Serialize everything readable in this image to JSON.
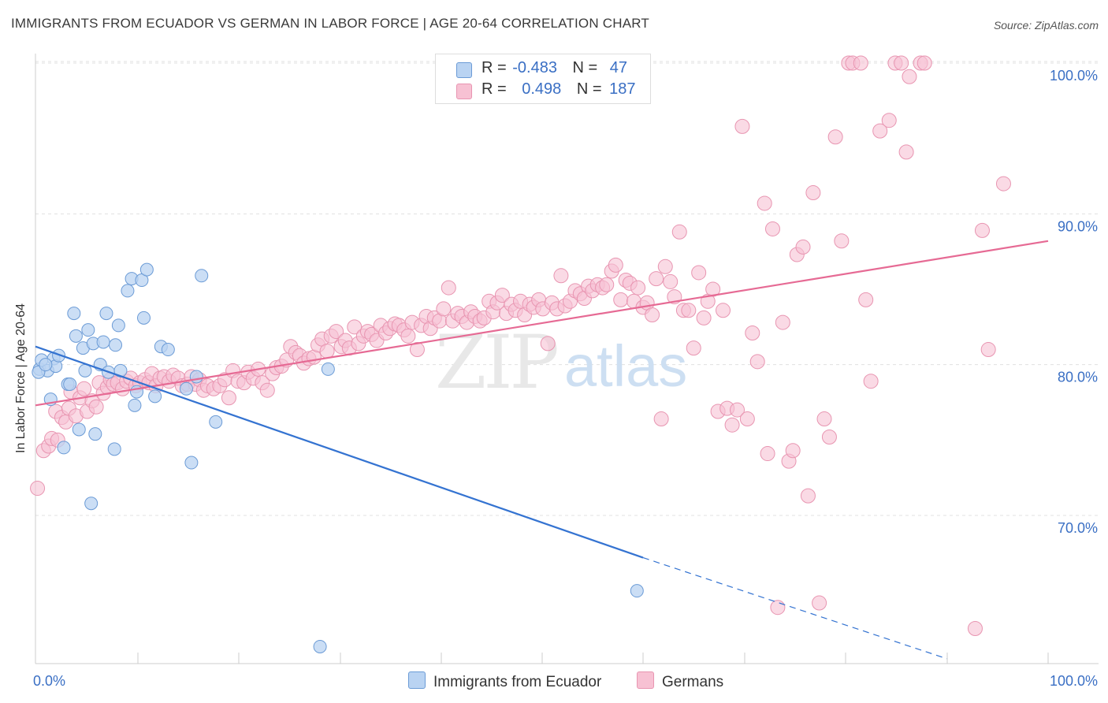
{
  "title": "IMMIGRANTS FROM ECUADOR VS GERMAN IN LABOR FORCE | AGE 20-64 CORRELATION CHART",
  "source": "Source: ZipAtlas.com",
  "watermark": {
    "zip": "ZIP",
    "atlas": "atlas"
  },
  "legend": {
    "series1": {
      "r_label": "R =",
      "r_value": "-0.483",
      "n_label": "N =",
      "n_value": "47"
    },
    "series2": {
      "r_label": "R =",
      "r_value": "0.498",
      "n_label": "N =",
      "n_value": "187"
    }
  },
  "colors": {
    "series1_fill": "#b9d3f2",
    "series1_stroke": "#6b9bd6",
    "series1_line": "#3473d1",
    "series2_fill": "#f7c1d3",
    "series2_stroke": "#e895b1",
    "series2_line": "#e66a94",
    "axis_text": "#3a6fc4",
    "grid": "#e0e0e0"
  },
  "chart_data": {
    "type": "scatter",
    "title": "IMMIGRANTS FROM ECUADOR VS GERMAN IN LABOR FORCE | AGE 20-64 CORRELATION CHART",
    "xlabel": "",
    "ylabel": "In Labor Force | Age 20-64",
    "xlim": [
      0,
      100
    ],
    "ylim": [
      60.5,
      101.5
    ],
    "x_tick_labels": [
      "0.0%",
      "100.0%"
    ],
    "y_ticks": [
      70,
      80,
      90,
      100
    ],
    "y_tick_labels": [
      "70.0%",
      "80.0%",
      "90.0%",
      "100.0%"
    ],
    "grid": true,
    "series": [
      {
        "name": "Immigrants from Ecuador",
        "r": -0.483,
        "n": 47,
        "trend": {
          "x0": 0,
          "y0": 81.2,
          "x1": 60,
          "y1": 67.2,
          "dash_to_x": 90,
          "dash_to_y": 60.5
        },
        "points": [
          [
            0.4,
            79.7
          ],
          [
            0.6,
            80.3
          ],
          [
            1.2,
            79.6
          ],
          [
            1.5,
            77.7
          ],
          [
            1.8,
            80.4
          ],
          [
            2.0,
            79.9
          ],
          [
            2.3,
            80.6
          ],
          [
            2.8,
            74.5
          ],
          [
            3.2,
            78.7
          ],
          [
            3.4,
            78.7
          ],
          [
            3.8,
            83.4
          ],
          [
            4.0,
            81.9
          ],
          [
            4.3,
            75.7
          ],
          [
            4.7,
            81.1
          ],
          [
            4.9,
            79.6
          ],
          [
            5.2,
            82.3
          ],
          [
            5.5,
            70.8
          ],
          [
            5.7,
            81.4
          ],
          [
            5.9,
            75.4
          ],
          [
            6.4,
            80.0
          ],
          [
            6.7,
            81.5
          ],
          [
            7.0,
            83.4
          ],
          [
            7.2,
            79.5
          ],
          [
            7.8,
            74.4
          ],
          [
            7.9,
            81.3
          ],
          [
            8.2,
            82.6
          ],
          [
            8.4,
            79.6
          ],
          [
            9.1,
            84.9
          ],
          [
            9.5,
            85.7
          ],
          [
            9.8,
            77.3
          ],
          [
            10.0,
            78.2
          ],
          [
            10.5,
            85.6
          ],
          [
            10.7,
            83.1
          ],
          [
            11.0,
            86.3
          ],
          [
            11.8,
            77.9
          ],
          [
            12.4,
            81.2
          ],
          [
            13.1,
            81.0
          ],
          [
            14.9,
            78.4
          ],
          [
            15.4,
            73.5
          ],
          [
            15.9,
            79.2
          ],
          [
            16.4,
            85.9
          ],
          [
            17.8,
            76.2
          ],
          [
            28.1,
            61.3
          ],
          [
            28.9,
            79.7
          ],
          [
            59.4,
            65.0
          ],
          [
            0.3,
            79.5
          ],
          [
            1.0,
            80.0
          ]
        ]
      },
      {
        "name": "Germans",
        "r": 0.498,
        "n": 187,
        "trend": {
          "x0": 0,
          "y0": 77.3,
          "x1": 100,
          "y1": 88.2
        },
        "points": [
          [
            0.2,
            71.8
          ],
          [
            0.8,
            74.3
          ],
          [
            1.3,
            74.6
          ],
          [
            1.6,
            75.1
          ],
          [
            2.0,
            76.9
          ],
          [
            2.2,
            75.0
          ],
          [
            2.6,
            76.5
          ],
          [
            3.0,
            76.2
          ],
          [
            3.3,
            77.1
          ],
          [
            3.5,
            78.2
          ],
          [
            4.0,
            76.6
          ],
          [
            4.4,
            77.8
          ],
          [
            4.8,
            78.4
          ],
          [
            5.1,
            76.9
          ],
          [
            5.6,
            77.6
          ],
          [
            6.0,
            77.2
          ],
          [
            6.3,
            78.8
          ],
          [
            6.7,
            78.1
          ],
          [
            7.1,
            78.5
          ],
          [
            7.4,
            79.0
          ],
          [
            7.7,
            78.7
          ],
          [
            8.1,
            78.8
          ],
          [
            8.6,
            78.4
          ],
          [
            9.0,
            78.9
          ],
          [
            9.4,
            79.1
          ],
          [
            9.9,
            78.6
          ],
          [
            10.3,
            78.8
          ],
          [
            10.8,
            79.0
          ],
          [
            11.2,
            78.8
          ],
          [
            11.5,
            79.4
          ],
          [
            11.9,
            78.6
          ],
          [
            12.3,
            79.1
          ],
          [
            12.7,
            79.2
          ],
          [
            13.2,
            78.9
          ],
          [
            13.6,
            79.3
          ],
          [
            14.1,
            79.1
          ],
          [
            14.5,
            78.6
          ],
          [
            15.0,
            78.7
          ],
          [
            15.4,
            79.2
          ],
          [
            15.8,
            78.7
          ],
          [
            16.2,
            79.0
          ],
          [
            16.6,
            78.3
          ],
          [
            17.0,
            78.6
          ],
          [
            17.6,
            78.4
          ],
          [
            18.2,
            78.6
          ],
          [
            18.7,
            79.0
          ],
          [
            19.1,
            77.8
          ],
          [
            19.5,
            79.6
          ],
          [
            20.0,
            78.9
          ],
          [
            20.6,
            78.8
          ],
          [
            21.0,
            79.5
          ],
          [
            21.5,
            79.1
          ],
          [
            22.0,
            79.7
          ],
          [
            22.4,
            78.8
          ],
          [
            22.9,
            78.3
          ],
          [
            23.4,
            79.4
          ],
          [
            23.8,
            79.8
          ],
          [
            24.3,
            79.9
          ],
          [
            24.8,
            80.3
          ],
          [
            25.2,
            81.2
          ],
          [
            25.7,
            80.8
          ],
          [
            26.1,
            80.6
          ],
          [
            26.5,
            80.1
          ],
          [
            27.0,
            80.4
          ],
          [
            27.5,
            80.5
          ],
          [
            27.9,
            81.3
          ],
          [
            28.3,
            81.7
          ],
          [
            28.8,
            80.9
          ],
          [
            29.2,
            81.9
          ],
          [
            29.7,
            82.2
          ],
          [
            30.2,
            81.2
          ],
          [
            30.6,
            81.6
          ],
          [
            31.0,
            81.1
          ],
          [
            31.5,
            82.5
          ],
          [
            31.9,
            81.4
          ],
          [
            32.4,
            81.9
          ],
          [
            32.8,
            82.2
          ],
          [
            33.2,
            82.0
          ],
          [
            33.7,
            81.6
          ],
          [
            34.1,
            82.6
          ],
          [
            34.6,
            82.1
          ],
          [
            35.0,
            82.4
          ],
          [
            35.5,
            82.7
          ],
          [
            35.9,
            82.6
          ],
          [
            36.4,
            82.3
          ],
          [
            36.8,
            81.9
          ],
          [
            37.2,
            82.8
          ],
          [
            37.7,
            81.0
          ],
          [
            38.1,
            82.6
          ],
          [
            38.6,
            83.2
          ],
          [
            39.0,
            82.4
          ],
          [
            39.4,
            83.1
          ],
          [
            39.9,
            82.9
          ],
          [
            40.3,
            83.7
          ],
          [
            40.8,
            85.1
          ],
          [
            41.2,
            82.9
          ],
          [
            41.7,
            83.4
          ],
          [
            42.1,
            83.2
          ],
          [
            42.6,
            82.8
          ],
          [
            43.0,
            83.5
          ],
          [
            43.4,
            83.2
          ],
          [
            43.9,
            82.9
          ],
          [
            44.3,
            83.1
          ],
          [
            44.8,
            84.2
          ],
          [
            45.2,
            83.5
          ],
          [
            45.6,
            84.1
          ],
          [
            46.1,
            84.6
          ],
          [
            46.5,
            83.4
          ],
          [
            47.0,
            84.0
          ],
          [
            47.4,
            83.6
          ],
          [
            47.9,
            84.2
          ],
          [
            48.3,
            83.3
          ],
          [
            48.8,
            84.0
          ],
          [
            49.2,
            83.8
          ],
          [
            49.7,
            84.3
          ],
          [
            50.1,
            83.7
          ],
          [
            50.6,
            81.4
          ],
          [
            51.0,
            84.1
          ],
          [
            51.5,
            83.7
          ],
          [
            51.9,
            85.9
          ],
          [
            52.3,
            83.9
          ],
          [
            52.8,
            84.2
          ],
          [
            53.3,
            84.9
          ],
          [
            53.8,
            84.7
          ],
          [
            54.2,
            84.4
          ],
          [
            54.6,
            85.2
          ],
          [
            55.0,
            84.9
          ],
          [
            55.5,
            85.3
          ],
          [
            56.0,
            85.1
          ],
          [
            56.4,
            85.3
          ],
          [
            56.9,
            86.2
          ],
          [
            57.3,
            86.6
          ],
          [
            57.8,
            84.3
          ],
          [
            58.3,
            85.6
          ],
          [
            58.7,
            85.4
          ],
          [
            59.1,
            84.2
          ],
          [
            59.5,
            85.1
          ],
          [
            60.0,
            83.8
          ],
          [
            60.4,
            84.1
          ],
          [
            60.9,
            83.3
          ],
          [
            61.3,
            85.7
          ],
          [
            61.8,
            76.4
          ],
          [
            62.2,
            86.5
          ],
          [
            62.7,
            85.5
          ],
          [
            63.1,
            84.5
          ],
          [
            63.6,
            88.8
          ],
          [
            64.0,
            83.6
          ],
          [
            64.5,
            83.6
          ],
          [
            65.0,
            81.1
          ],
          [
            65.5,
            86.1
          ],
          [
            66.0,
            83.1
          ],
          [
            66.4,
            84.2
          ],
          [
            66.9,
            85.0
          ],
          [
            67.4,
            76.9
          ],
          [
            67.9,
            83.6
          ],
          [
            68.3,
            77.1
          ],
          [
            68.8,
            76.0
          ],
          [
            69.3,
            77.0
          ],
          [
            69.8,
            95.8
          ],
          [
            70.3,
            76.4
          ],
          [
            70.8,
            82.1
          ],
          [
            71.3,
            80.2
          ],
          [
            72.0,
            90.7
          ],
          [
            72.3,
            74.1
          ],
          [
            72.8,
            89.0
          ],
          [
            73.3,
            63.9
          ],
          [
            73.8,
            82.8
          ],
          [
            74.4,
            73.6
          ],
          [
            74.8,
            74.3
          ],
          [
            75.2,
            87.3
          ],
          [
            75.8,
            87.8
          ],
          [
            76.3,
            71.3
          ],
          [
            76.8,
            91.4
          ],
          [
            77.4,
            64.2
          ],
          [
            77.9,
            76.4
          ],
          [
            78.4,
            75.2
          ],
          [
            79.0,
            95.1
          ],
          [
            79.6,
            88.2
          ],
          [
            80.3,
            100.0
          ],
          [
            80.7,
            100.0
          ],
          [
            81.5,
            100.0
          ],
          [
            82.0,
            84.3
          ],
          [
            82.5,
            78.9
          ],
          [
            83.4,
            95.5
          ],
          [
            84.3,
            96.2
          ],
          [
            84.9,
            100.0
          ],
          [
            85.5,
            100.0
          ],
          [
            86.0,
            94.1
          ],
          [
            86.3,
            99.1
          ],
          [
            87.4,
            100.0
          ],
          [
            87.8,
            100.0
          ],
          [
            95.6,
            92.0
          ],
          [
            93.5,
            88.9
          ],
          [
            94.1,
            81.0
          ],
          [
            92.8,
            62.5
          ]
        ]
      }
    ]
  }
}
